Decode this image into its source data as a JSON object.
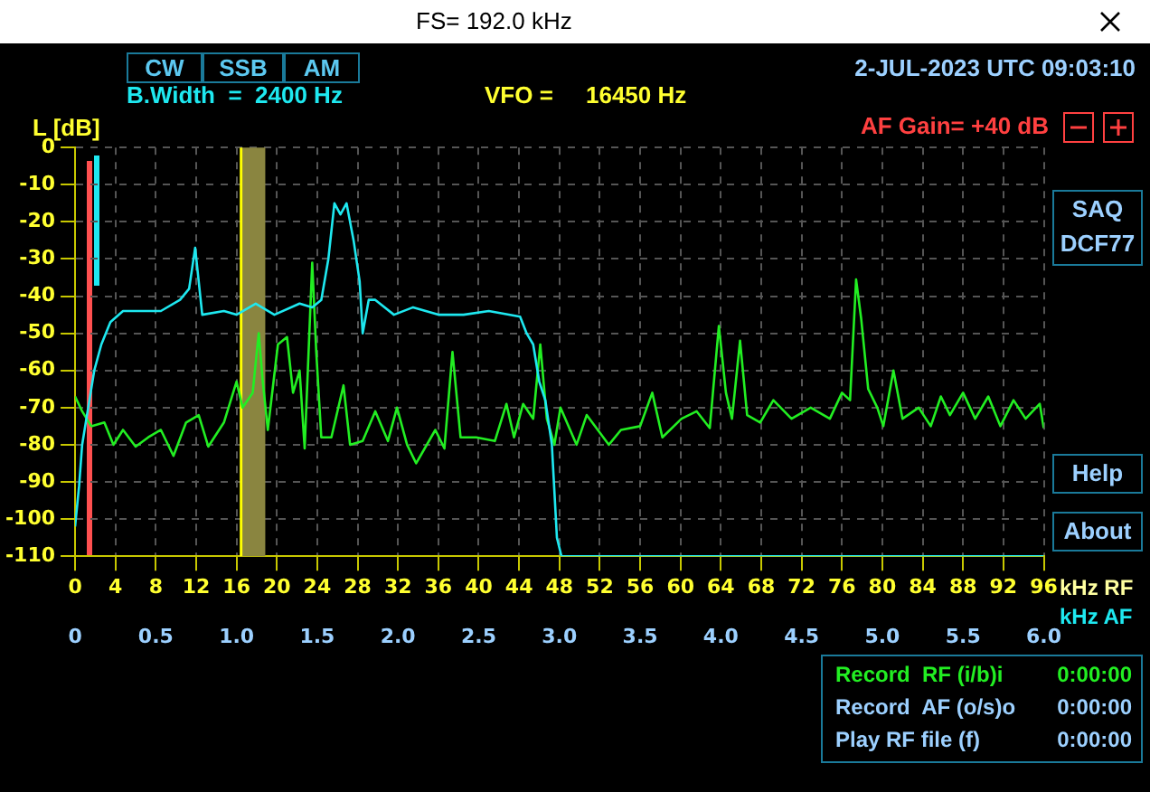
{
  "chart_data": {
    "type": "line",
    "title": "FS= 192.0 kHz",
    "ylabel": "L [dB]",
    "xlabel": "kHz RF",
    "x2label": "kHz AF",
    "xlim": [
      0,
      96
    ],
    "xticks": [
      0,
      4,
      8,
      12,
      16,
      20,
      24,
      28,
      32,
      36,
      40,
      44,
      48,
      52,
      56,
      60,
      64,
      68,
      72,
      76,
      80,
      84,
      88,
      92,
      96
    ],
    "x2lim": [
      0,
      6
    ],
    "x2ticks": [
      0,
      0.5,
      {
        "value": 1,
        "label": "1.0"
      },
      1.5,
      {
        "value": 2,
        "label": "2.0"
      },
      2.5,
      {
        "value": 3,
        "label": "3.0"
      },
      3.5,
      {
        "value": 4,
        "label": "4.0"
      },
      4.5,
      {
        "value": 5,
        "label": "5.0"
      },
      5.5,
      {
        "value": 6,
        "label": "6.0"
      }
    ],
    "ylim": [
      -110,
      0
    ],
    "yticks": [
      0,
      -10,
      -20,
      -30,
      -40,
      -50,
      -60,
      -70,
      -80,
      -90,
      -100,
      -110
    ],
    "grid": true,
    "marker": "none",
    "line_style": "solid",
    "series": [
      {
        "color": "#1ee8f0",
        "x": [
          0,
          0.4,
          0.7,
          1.3,
          1.9,
          2.6,
          3.5,
          4.75,
          6.6,
          8.5,
          10.4,
          11.3,
          11.9,
          12.25,
          12.6,
          14.75,
          16,
          17.9,
          19.75,
          22.25,
          23.5,
          24.4,
          25.1,
          25.7,
          26.3,
          26.9,
          27.6,
          28.2,
          28.5,
          29.1,
          29.75,
          31.6,
          33.5,
          36,
          38.5,
          41,
          44.1,
          44.75,
          45.4,
          46,
          46.6,
          47.25,
          47.75,
          48.2,
          96
        ],
        "values": [
          -102,
          -91,
          -80,
          -70,
          -60,
          -53,
          -47,
          -44,
          -44,
          -44,
          -41,
          -38,
          -27,
          -36,
          -45,
          -44,
          -45,
          -42,
          -45,
          -42,
          -43,
          -41,
          -30,
          -15,
          -18,
          -15,
          -25,
          -36,
          -50,
          -41,
          -41,
          -45,
          -43,
          -45,
          -45,
          -44,
          -45.5,
          -50,
          -53,
          -63,
          -68,
          -80,
          -105,
          -110,
          -110
        ]
      },
      {
        "color": "#22ee22",
        "x": [
          0,
          0.7,
          1.6,
          2.9,
          3.8,
          4.75,
          6,
          7.25,
          8.5,
          9.75,
          11,
          12.25,
          13.2,
          14.75,
          16,
          16.6,
          17.6,
          18.2,
          18.6,
          19.1,
          20.1,
          21,
          21.6,
          22.25,
          22.75,
          23.5,
          23.9,
          24.4,
          25.4,
          26.6,
          27.25,
          28.5,
          29.75,
          31,
          31.9,
          32.9,
          33.8,
          35.7,
          36.6,
          37.4,
          38.2,
          39.75,
          41.6,
          42.75,
          43.5,
          44.4,
          45.4,
          46.1,
          46.75,
          47.5,
          48.1,
          49.7,
          50.7,
          52.9,
          54.1,
          56,
          57.2,
          58.2,
          60.1,
          61.6,
          62.9,
          63.8,
          64.5,
          65.1,
          65.9,
          66.6,
          67.9,
          69.2,
          71,
          72.9,
          74.8,
          76,
          76.8,
          77.4,
          77.9,
          78.6,
          79.5,
          80.1,
          81.1,
          82,
          83.6,
          84.8,
          85.8,
          86.7,
          88,
          89.2,
          90.5,
          91.7,
          93,
          94.2,
          95.6,
          96
        ],
        "values": [
          -67,
          -71,
          -75,
          -74,
          -80,
          -76,
          -80.5,
          -78,
          -76,
          -83,
          -74,
          -72,
          -80.5,
          -74,
          -63,
          -70,
          -66,
          -50,
          -63,
          -76,
          -53,
          -51,
          -66,
          -60,
          -81,
          -31,
          -55,
          -78,
          -78,
          -64,
          -80,
          -79,
          -71,
          -79,
          -70,
          -80,
          -85,
          -76,
          -81,
          -55,
          -78,
          -78,
          -79,
          -69,
          -78,
          -69,
          -73,
          -53,
          -73,
          -80,
          -70,
          -80,
          -72,
          -80,
          -76,
          -75,
          -66,
          -78,
          -73,
          -71,
          -75.5,
          -48,
          -66,
          -73,
          -52,
          -72,
          -74,
          -68,
          -73,
          -70,
          -73,
          -66,
          -68,
          -35.5,
          -46,
          -65,
          -70,
          -75,
          -60,
          -73,
          -70,
          -75,
          -67,
          -72,
          -66,
          -73,
          -67,
          -75,
          -68,
          -73,
          -69,
          -75.5
        ]
      }
    ],
    "bands": [
      {
        "axis": "x",
        "from": 16.45,
        "to": 18.85,
        "color": "#8a8540"
      }
    ],
    "ref_lines": [
      {
        "axis": "x",
        "value": 16.45,
        "color": "#ffff00",
        "line_style": "solid"
      }
    ],
    "annotations": [
      "CW",
      "SSB",
      "AM",
      "B.Width  =  2400 Hz",
      "VFO =     16450 Hz",
      "2-JUL-2023 UTC 09:03:10",
      "AF Gain= +40 dB",
      "SAQ DCF77",
      "Help",
      "About",
      "Record  RF (i/b)i",
      "0:00:00",
      "Record  AF (o/s)o",
      "0:00:00",
      "Play RF file (f)",
      "0:00:00"
    ]
  }
}
